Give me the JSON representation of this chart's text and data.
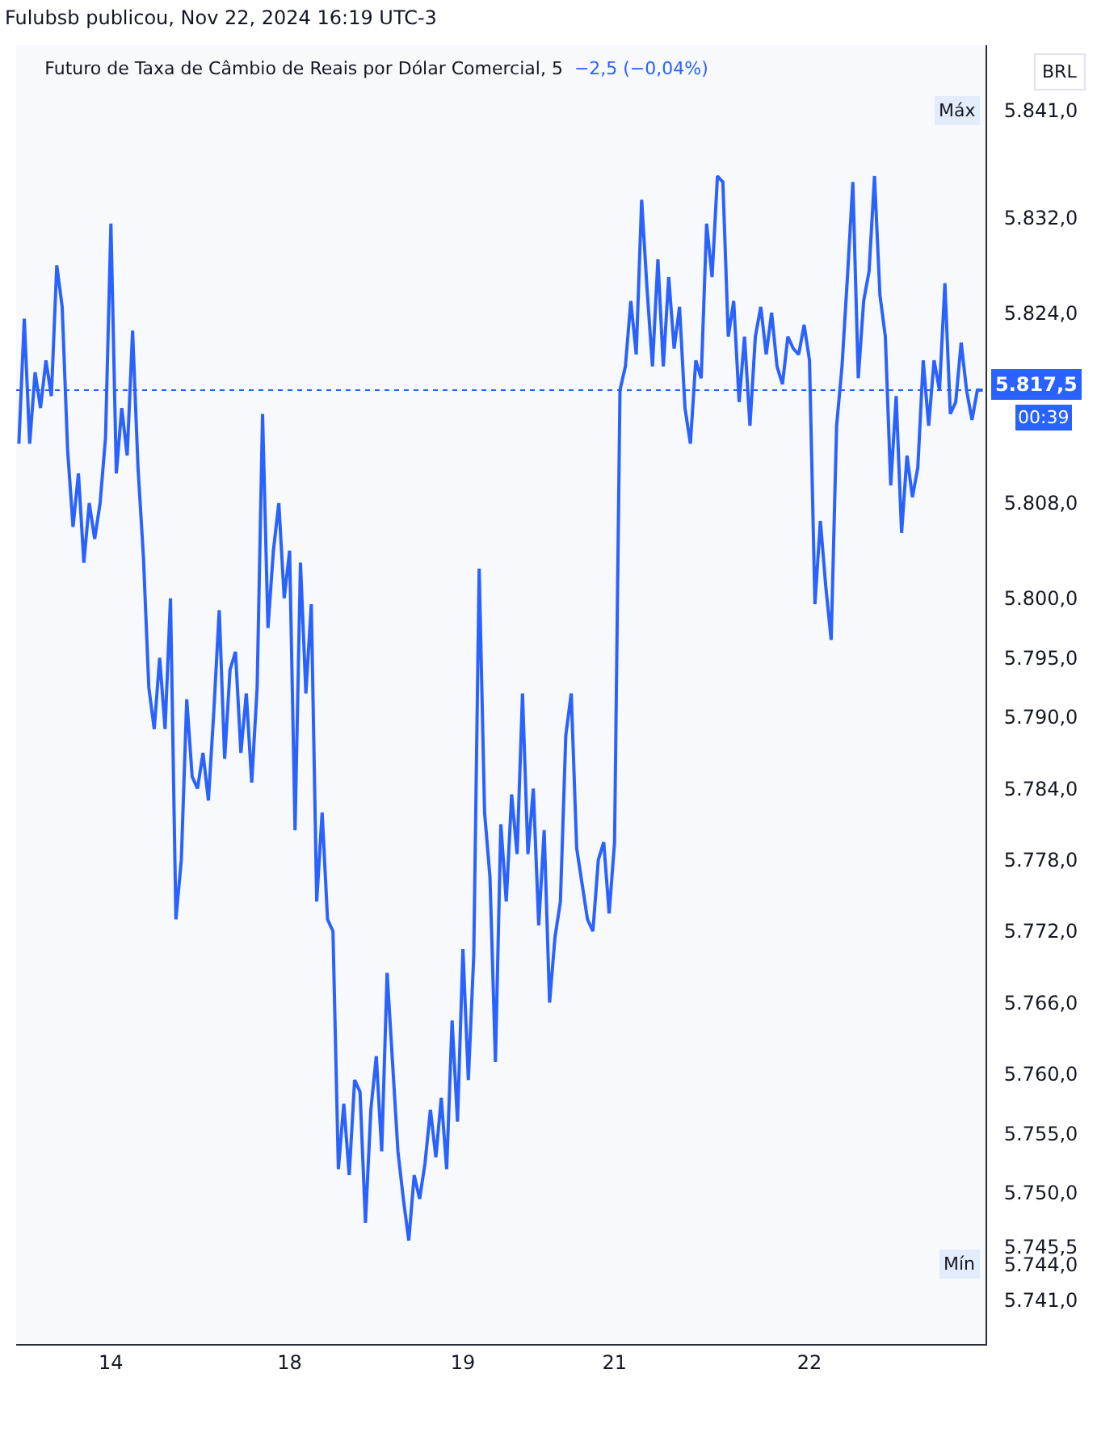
{
  "chart_data": {
    "type": "line",
    "title": "Futuro de Taxa de Câmbio de Reais por Dólar Comercial, 5",
    "subtitle": "−2,5 (−0,04%)",
    "annotations": [
      "Fulubsb publicou, Nov 22, 2024 16:19 UTC-3",
      "BRL",
      {
        "text": "Máx",
        "y": 5841
      },
      {
        "text": "Mín",
        "y": 5744
      },
      "00:39"
    ],
    "categories": [
      null,
      null,
      null,
      null,
      null,
      null,
      null,
      null,
      null,
      null,
      null,
      null,
      null,
      null,
      null,
      null,
      null,
      "14",
      null,
      null,
      null,
      null,
      null,
      null,
      null,
      null,
      null,
      null,
      null,
      null,
      null,
      null,
      null,
      null,
      null,
      null,
      null,
      null,
      null,
      null,
      null,
      null,
      null,
      null,
      null,
      null,
      null,
      null,
      null,
      null,
      "18",
      null,
      null,
      null,
      null,
      null,
      null,
      null,
      null,
      null,
      null,
      null,
      null,
      null,
      null,
      null,
      null,
      null,
      null,
      null,
      null,
      null,
      null,
      null,
      null,
      null,
      null,
      null,
      null,
      null,
      null,
      null,
      "19",
      null,
      null,
      null,
      null,
      null,
      null,
      null,
      null,
      null,
      null,
      null,
      null,
      null,
      null,
      null,
      null,
      null,
      null,
      null,
      null,
      null,
      null,
      null,
      null,
      null,
      null,
      null,
      "21",
      null,
      null,
      null,
      null,
      null,
      null,
      null,
      null,
      null,
      null,
      null,
      null,
      null,
      null,
      null,
      null,
      null,
      null,
      null,
      null,
      null,
      null,
      null,
      null,
      null,
      null,
      null,
      null,
      null,
      null,
      null,
      null,
      null,
      null,
      null,
      "22",
      null,
      null,
      null,
      null,
      null,
      null,
      null,
      null,
      null,
      null,
      null,
      null,
      null,
      null,
      null,
      null,
      null,
      null,
      null,
      null,
      null,
      null,
      null,
      null,
      null,
      null,
      null,
      null,
      null,
      null,
      null,
      null
    ],
    "series": [
      {
        "color": "#2962ff",
        "values": [
          5813.0,
          5823.5,
          5813.0,
          5819.0,
          5816.0,
          5820.0,
          5817.0,
          5828.0,
          5824.5,
          5812.5,
          5806.0,
          5810.5,
          5803.0,
          5808.0,
          5805.0,
          5808.0,
          5813.5,
          5831.5,
          5810.5,
          5816.0,
          5812.0,
          5822.5,
          5811.0,
          5803.5,
          5792.5,
          5789.0,
          5795.0,
          5789.0,
          5800.0,
          5773.0,
          5778.0,
          5791.5,
          5785.0,
          5784.0,
          5787.0,
          5783.0,
          5790.5,
          5799.0,
          5786.5,
          5794.0,
          5795.5,
          5787.0,
          5792.0,
          5784.5,
          5792.5,
          5815.5,
          5797.5,
          5804.0,
          5808.0,
          5800.0,
          5804.0,
          5780.5,
          5803.0,
          5792.0,
          5799.5,
          5774.5,
          5782.0,
          5773.0,
          5772.0,
          5752.0,
          5757.5,
          5751.5,
          5759.5,
          5758.5,
          5747.5,
          5757.0,
          5761.5,
          5753.5,
          5768.5,
          5761.0,
          5753.5,
          5749.5,
          5746.0,
          5751.5,
          5749.5,
          5752.5,
          5757.0,
          5753.0,
          5758.0,
          5752.0,
          5764.5,
          5756.0,
          5770.5,
          5759.5,
          5770.0,
          5802.5,
          5782.0,
          5776.5,
          5761.0,
          5781.0,
          5774.5,
          5783.5,
          5778.5,
          5792.0,
          5778.5,
          5784.0,
          5772.5,
          5780.5,
          5766.0,
          5771.5,
          5774.5,
          5788.5,
          5792.0,
          5779.0,
          5776.0,
          5773.0,
          5772.0,
          5778.0,
          5779.5,
          5773.5,
          5779.5,
          5817.5,
          5819.5,
          5825.0,
          5820.5,
          5833.5,
          5826.0,
          5819.5,
          5828.5,
          5819.5,
          5827.0,
          5821.0,
          5824.5,
          5816.0,
          5813.0,
          5820.0,
          5818.5,
          5831.5,
          5827.0,
          5835.5,
          5835.0,
          5822.0,
          5825.0,
          5816.5,
          5822.0,
          5814.5,
          5822.0,
          5824.5,
          5820.5,
          5824.0,
          5819.5,
          5818.0,
          5822.0,
          5821.0,
          5820.5,
          5823.0,
          5820.0,
          5799.5,
          5806.5,
          5801.0,
          5796.5,
          5814.5,
          5819.5,
          5827.0,
          5835.0,
          5818.5,
          5825.0,
          5827.5,
          5835.5,
          5825.5,
          5822.0,
          5809.5,
          5817.0,
          5805.5,
          5812.0,
          5808.5,
          5811.0,
          5820.0,
          5814.5,
          5820.0,
          5817.5,
          5826.5,
          5815.5,
          5816.5,
          5821.5,
          5817.5,
          5815.0,
          5817.5,
          5817.5
        ]
      }
    ],
    "ylim": [
      5737.3,
      5846.5
    ],
    "yticks": [
      {
        "value": 5841,
        "label": "5.841,0"
      },
      {
        "value": 5832,
        "label": "5.832,0"
      },
      {
        "value": 5824,
        "label": "5.824,0"
      },
      {
        "value": 5808,
        "label": "5.808,0"
      },
      {
        "value": 5800,
        "label": "5.800,0"
      },
      {
        "value": 5795,
        "label": "5.795,0"
      },
      {
        "value": 5790,
        "label": "5.790,0"
      },
      {
        "value": 5784,
        "label": "5.784,0"
      },
      {
        "value": 5778,
        "label": "5.778,0"
      },
      {
        "value": 5772,
        "label": "5.772,0"
      },
      {
        "value": 5766,
        "label": "5.766,0"
      },
      {
        "value": 5760,
        "label": "5.760,0"
      },
      {
        "value": 5755,
        "label": "5.755,0"
      },
      {
        "value": 5750,
        "label": "5.750,0"
      },
      {
        "value": 5745.5,
        "label": "5.745,5"
      },
      {
        "value": 5744,
        "label": "5.744,0"
      },
      {
        "value": 5741,
        "label": "5.741,0"
      }
    ],
    "ref_lines": [
      {
        "axis": "y",
        "value": 5817.5,
        "label": "5.817,5",
        "color": "#2962ff",
        "line_style": "dotted"
      }
    ]
  }
}
